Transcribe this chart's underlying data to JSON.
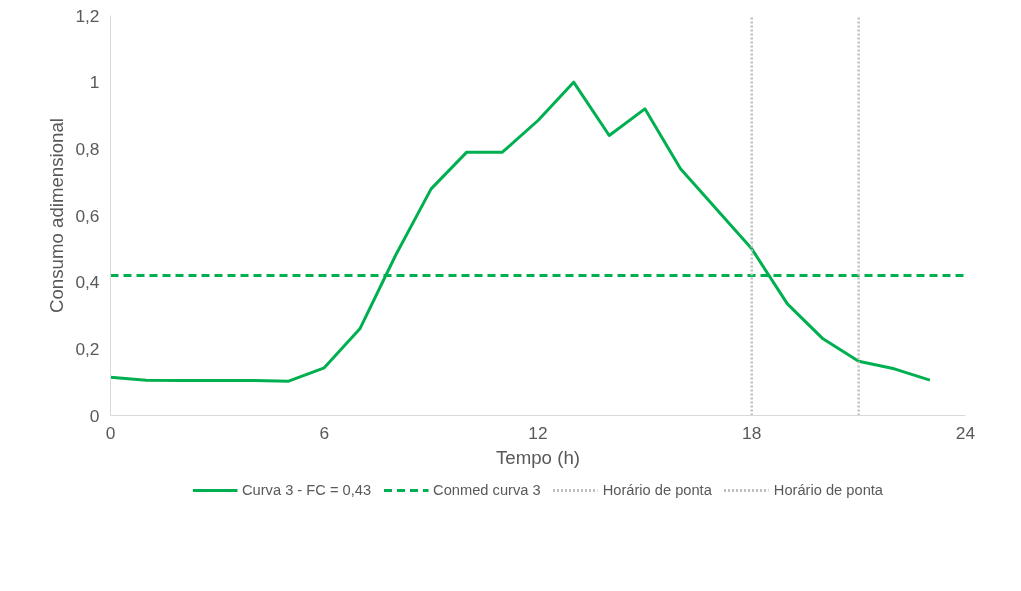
{
  "chart_data": {
    "type": "line",
    "xlabel": "Tempo (h)",
    "ylabel": "Consumo adimensional",
    "x": [
      0,
      1,
      2,
      3,
      4,
      5,
      6,
      7,
      8,
      9,
      10,
      11,
      12,
      13,
      14,
      15,
      16,
      17,
      18,
      19,
      20,
      21,
      22,
      23
    ],
    "series": [
      {
        "name": "Curva 3 - FC = 0,43",
        "color": "#00b050",
        "line_style": "solid",
        "values": [
          0.115,
          0.106,
          0.105,
          0.105,
          0.105,
          0.103,
          0.143,
          0.26,
          0.48,
          0.68,
          0.79,
          0.79,
          0.885,
          1.0,
          0.84,
          0.92,
          0.74,
          0.62,
          0.5,
          0.335,
          0.23,
          0.163,
          0.14,
          0.106
        ]
      },
      {
        "name": "Conmed curva 3",
        "color": "#00b050",
        "line_style": "dashed",
        "x": [
          0,
          24
        ],
        "values": [
          0.42,
          0.42
        ]
      }
    ],
    "ref_lines": [
      {
        "axis": "x",
        "value": 18,
        "label": "Horário de ponta",
        "color": "#bfbfbf",
        "line_style": "dotted"
      },
      {
        "axis": "x",
        "value": 21,
        "label": "Horário de ponta",
        "color": "#bfbfbf",
        "line_style": "dotted"
      }
    ],
    "xlim": [
      0,
      24
    ],
    "xticks": [
      0,
      6,
      12,
      18,
      24
    ],
    "ylim": [
      0,
      1.2
    ],
    "yticks": [
      0,
      {
        "value": 0.2,
        "label": "0,2"
      },
      {
        "value": 0.4,
        "label": "0,4"
      },
      {
        "value": 0.6,
        "label": "0,6"
      },
      {
        "value": 0.8,
        "label": "0,8"
      },
      1,
      {
        "value": 1.2,
        "label": "1,2"
      }
    ],
    "grid": false,
    "legend": "bottom",
    "marker": "none"
  }
}
